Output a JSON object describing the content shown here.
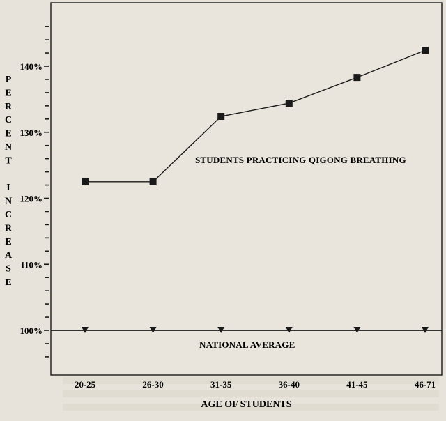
{
  "chart_data": {
    "type": "line",
    "categories": [
      "20-25",
      "26-30",
      "31-35",
      "36-40",
      "41-45",
      "46-71"
    ],
    "series": [
      {
        "name": "STUDENTS PRACTICING QIGONG BREATHING",
        "values": [
          122.5,
          122.5,
          132.4,
          134.4,
          138.3,
          142.4
        ],
        "marker": "square",
        "color": "#1a1a1a"
      },
      {
        "name": "NATIONAL AVERAGE",
        "values": [
          100,
          100,
          100,
          100,
          100,
          100
        ],
        "marker": "triangle-down",
        "color": "#1a1a1a"
      }
    ],
    "yticks": [
      {
        "value": 100,
        "label": "100%"
      },
      {
        "value": 110,
        "label": "110%"
      },
      {
        "value": 120,
        "label": "120%"
      },
      {
        "value": 130,
        "label": "130%"
      },
      {
        "value": 140,
        "label": "140%"
      }
    ],
    "ylim": [
      96,
      147
    ],
    "ylabel": "PERCENT INCREASE",
    "xlabel": "AGE OF STUDENTS",
    "title": "",
    "grid": false,
    "legend": "none",
    "background": "#e7e3da"
  }
}
